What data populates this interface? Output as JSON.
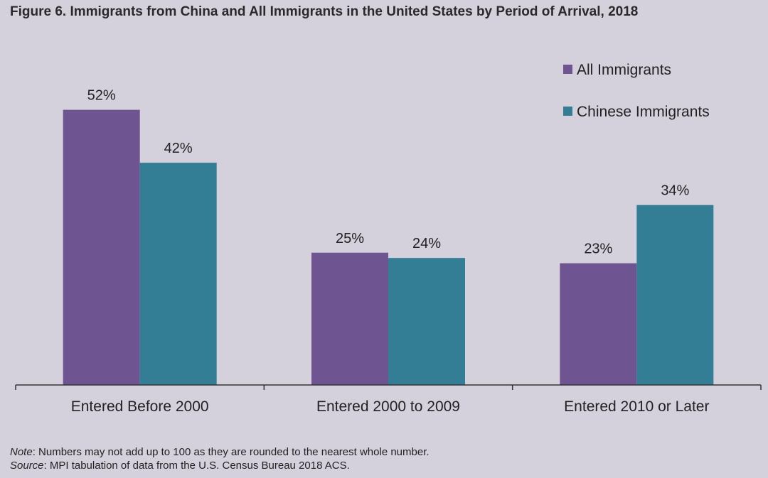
{
  "title": "Figure 6. Immigrants from China and All Immigrants in the United States by Period of Arrival, 2018",
  "chart_data": {
    "type": "bar",
    "title": "Figure 6. Immigrants from China and All Immigrants in the United States by Period of Arrival, 2018",
    "categories": [
      "Entered Before 2000",
      "Entered 2000 to 2009",
      "Entered 2010 or Later"
    ],
    "series": [
      {
        "name": "All Immigrants",
        "values": [
          52,
          25,
          23
        ],
        "labels": [
          "52%",
          "25%",
          "23%"
        ],
        "color": "#6e5491"
      },
      {
        "name": "Chinese Immigrants",
        "values": [
          42,
          24,
          34
        ],
        "labels": [
          "42%",
          "24%",
          "34%"
        ],
        "color": "#337e94"
      }
    ],
    "ylim": [
      0,
      60
    ],
    "xlabel": "",
    "ylabel": "",
    "grid": false,
    "legend_position": "top-right"
  },
  "notes": {
    "note_label": "Note",
    "note_text": ": Numbers may not add up to 100 as they are rounded to the nearest whole number.",
    "source_label": "Source",
    "source_text": ": MPI tabulation of data from the U.S. Census Bureau 2018 ACS."
  }
}
